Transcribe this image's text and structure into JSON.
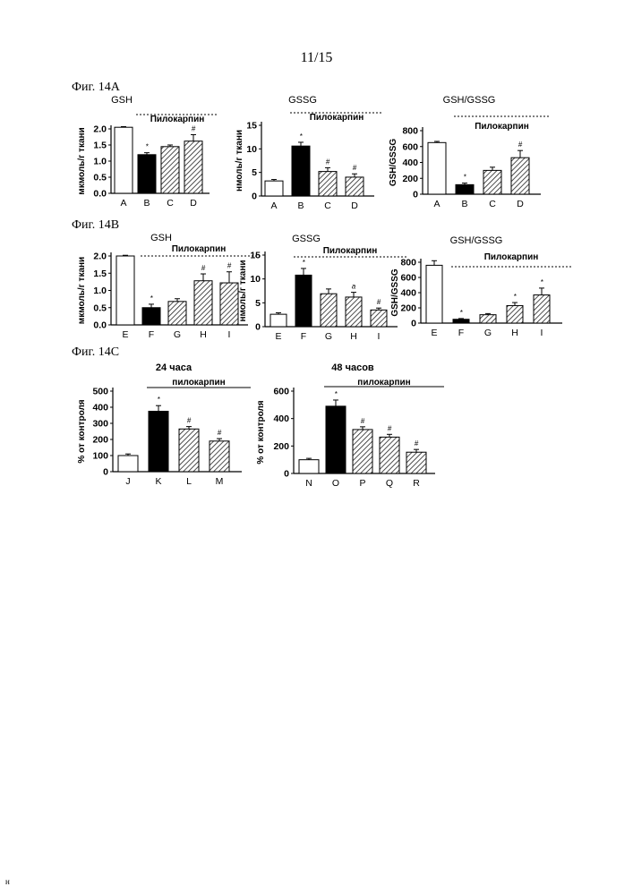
{
  "page": {
    "page_number": "11/15",
    "footer_mark": "н"
  },
  "figures": {
    "fig_a": "Фиг. 14А",
    "fig_b": "Фиг. 14В",
    "fig_c": "Фиг. 14С"
  },
  "chart_data": [
    {
      "id": "a1",
      "type": "bar",
      "title": "GSH",
      "bracket_label": "Пилокарпин",
      "ylabel": "мкмоль/г ткани",
      "ylim": [
        0,
        2.0
      ],
      "yticks": [
        0.0,
        0.5,
        1.0,
        1.5,
        2.0
      ],
      "ytick_labels": [
        "0.0",
        "0.5",
        "1.0",
        "1.5",
        "2.0"
      ],
      "categories": [
        "A",
        "B",
        "C",
        "D"
      ],
      "values": [
        2.05,
        1.2,
        1.45,
        1.62
      ],
      "errors": [
        0.02,
        0.06,
        0.05,
        0.2
      ],
      "markers": [
        "",
        "*",
        "",
        "#"
      ],
      "fills": [
        "white",
        "black",
        "hatch",
        "hatch"
      ]
    },
    {
      "id": "a2",
      "type": "bar",
      "title": "GSSG",
      "bracket_label": "Пилокарпин",
      "ylabel": "нмоль/г ткани",
      "ylim": [
        0,
        15
      ],
      "yticks": [
        0,
        5,
        10,
        15
      ],
      "ytick_labels": [
        "0",
        "5",
        "10",
        "15"
      ],
      "categories": [
        "A",
        "B",
        "C",
        "D"
      ],
      "values": [
        3.2,
        10.6,
        5.2,
        4.0
      ],
      "errors": [
        0.3,
        0.8,
        0.8,
        0.7
      ],
      "markers": [
        "",
        "*",
        "#",
        "#"
      ],
      "fills": [
        "white",
        "black",
        "hatch",
        "hatch"
      ]
    },
    {
      "id": "a3",
      "type": "bar",
      "title": "GSH/GSSG",
      "bracket_label": "Пилокарпин",
      "ylabel": "GSH/GSSG",
      "ylim": [
        0,
        800
      ],
      "yticks": [
        0,
        200,
        400,
        600,
        800
      ],
      "ytick_labels": [
        "0",
        "200",
        "400",
        "600",
        "800"
      ],
      "categories": [
        "A",
        "B",
        "C",
        "D"
      ],
      "values": [
        650,
        120,
        300,
        460
      ],
      "errors": [
        15,
        20,
        40,
        90
      ],
      "markers": [
        "",
        "*",
        "",
        "#"
      ],
      "fills": [
        "white",
        "black",
        "hatch",
        "hatch"
      ]
    },
    {
      "id": "b1",
      "type": "bar",
      "title": "GSH",
      "bracket_label": "Пилокарпин",
      "ylabel": "мкмоль/г ткани",
      "ylim": [
        0,
        2.0
      ],
      "yticks": [
        0.0,
        0.5,
        1.0,
        1.5,
        2.0
      ],
      "ytick_labels": [
        "0.0",
        "0.5",
        "1.0",
        "1.5",
        "2.0"
      ],
      "categories": [
        "E",
        "F",
        "G",
        "H",
        "I"
      ],
      "values": [
        2.0,
        0.5,
        0.68,
        1.28,
        1.22
      ],
      "errors": [
        0.02,
        0.1,
        0.08,
        0.2,
        0.32
      ],
      "markers": [
        "",
        "*",
        "",
        "#",
        "#"
      ],
      "fills": [
        "white",
        "black",
        "hatch",
        "hatch",
        "hatch"
      ]
    },
    {
      "id": "b2",
      "type": "bar",
      "title": "GSSG",
      "bracket_label": "Пилокарпин",
      "ylabel": "нмоль/г ткани",
      "ylim": [
        0,
        15
      ],
      "yticks": [
        0,
        5,
        10,
        15
      ],
      "ytick_labels": [
        "0",
        "5",
        "10",
        "15"
      ],
      "categories": [
        "E",
        "F",
        "G",
        "H",
        "I"
      ],
      "values": [
        2.6,
        10.8,
        6.9,
        6.2,
        3.5
      ],
      "errors": [
        0.3,
        1.4,
        1.0,
        1.0,
        0.4
      ],
      "markers": [
        "",
        "*",
        "",
        "a",
        "#"
      ],
      "fills": [
        "white",
        "black",
        "hatch",
        "hatch",
        "hatch"
      ]
    },
    {
      "id": "b3",
      "type": "bar",
      "title": "GSH/GSSG",
      "bracket_label": "Пилокарпин",
      "ylabel": "GSH/GSSG",
      "ylim": [
        0,
        800
      ],
      "yticks": [
        0,
        200,
        400,
        600,
        800
      ],
      "ytick_labels": [
        "0",
        "200",
        "400",
        "600",
        "800"
      ],
      "categories": [
        "E",
        "F",
        "G",
        "H",
        "I"
      ],
      "values": [
        760,
        50,
        110,
        230,
        370
      ],
      "errors": [
        60,
        10,
        15,
        40,
        90
      ],
      "markers": [
        "",
        "*",
        "",
        "*",
        "*"
      ],
      "fills": [
        "white",
        "black",
        "hatch",
        "hatch",
        "hatch"
      ]
    },
    {
      "id": "c1",
      "type": "bar",
      "title": "24 часа",
      "bracket_label": "пилокарпин",
      "ylabel": "% от контроля",
      "ylim": [
        0,
        500
      ],
      "yticks": [
        0,
        100,
        200,
        300,
        400,
        500
      ],
      "ytick_labels": [
        "0",
        "100",
        "200",
        "300",
        "400",
        "500"
      ],
      "categories": [
        "J",
        "K",
        "L",
        "M"
      ],
      "values": [
        100,
        375,
        265,
        190
      ],
      "errors": [
        10,
        35,
        15,
        15
      ],
      "markers": [
        "",
        "*",
        "#",
        "#"
      ],
      "fills": [
        "white",
        "black",
        "hatch",
        "hatch"
      ]
    },
    {
      "id": "c2",
      "type": "bar",
      "title": "48 часов",
      "bracket_label": "пилокарпин",
      "ylabel": "% от контроля",
      "ylim": [
        0,
        600
      ],
      "yticks": [
        0,
        200,
        400,
        600
      ],
      "ytick_labels": [
        "0",
        "200",
        "400",
        "600"
      ],
      "categories": [
        "N",
        "O",
        "P",
        "Q",
        "R"
      ],
      "values": [
        100,
        490,
        320,
        265,
        155
      ],
      "errors": [
        10,
        45,
        20,
        20,
        20
      ],
      "markers": [
        "",
        "*",
        "#",
        "#",
        "#"
      ],
      "fills": [
        "white",
        "black",
        "hatch",
        "hatch",
        "hatch"
      ]
    }
  ]
}
